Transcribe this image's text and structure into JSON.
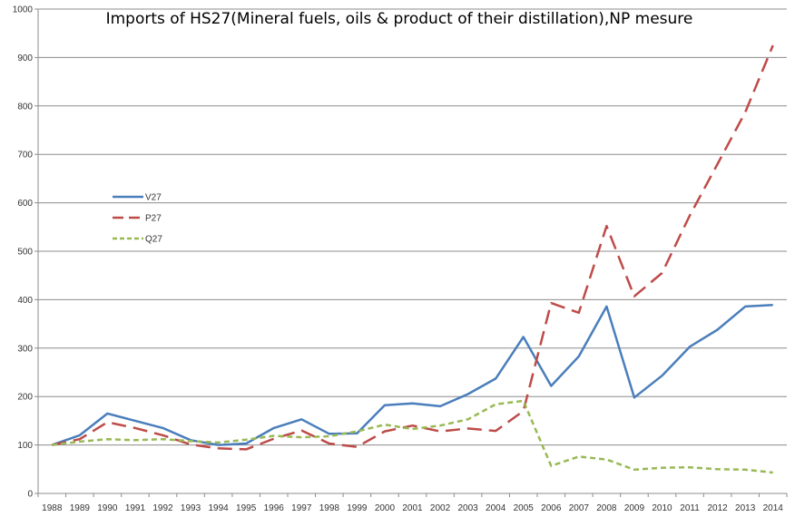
{
  "chart_data": {
    "type": "line",
    "title": "Imports of HS27(Mineral fuels, oils & product of their distillation),NP mesure",
    "xlabel": "",
    "ylabel": "",
    "categories": [
      "1988",
      "1989",
      "1990",
      "1991",
      "1992",
      "1993",
      "1994",
      "1995",
      "1996",
      "1997",
      "1998",
      "1999",
      "2000",
      "2001",
      "2002",
      "2003",
      "2004",
      "2005",
      "2006",
      "2007",
      "2008",
      "2009",
      "2010",
      "2011",
      "2012",
      "2013",
      "2014"
    ],
    "ylim": [
      0,
      1000
    ],
    "yticks": [
      "0",
      "100",
      "200",
      "300",
      "400",
      "500",
      "600",
      "700",
      "800",
      "900",
      "1000"
    ],
    "grid": true,
    "legend_position": "left-middle",
    "series": [
      {
        "name": "V27",
        "color": "#4a7ebb",
        "style": "solid",
        "values": [
          100,
          120,
          165,
          150,
          135,
          110,
          100,
          103,
          135,
          153,
          123,
          124,
          182,
          186,
          180,
          205,
          237,
          323,
          222,
          283,
          386,
          198,
          243,
          303,
          338,
          386,
          389
        ]
      },
      {
        "name": "P27",
        "color": "#be4b48",
        "style": "long-dash",
        "values": [
          100,
          112,
          147,
          135,
          120,
          101,
          93,
          91,
          113,
          130,
          103,
          96,
          128,
          140,
          128,
          134,
          129,
          170,
          393,
          373,
          552,
          407,
          455,
          574,
          680,
          787,
          925
        ]
      },
      {
        "name": "Q27",
        "color": "#98b954",
        "style": "short-dash",
        "values": [
          100,
          107,
          112,
          110,
          112,
          108,
          105,
          111,
          119,
          116,
          118,
          128,
          142,
          133,
          140,
          153,
          184,
          191,
          57,
          76,
          70,
          49,
          53,
          54,
          50,
          49,
          43
        ]
      }
    ]
  }
}
